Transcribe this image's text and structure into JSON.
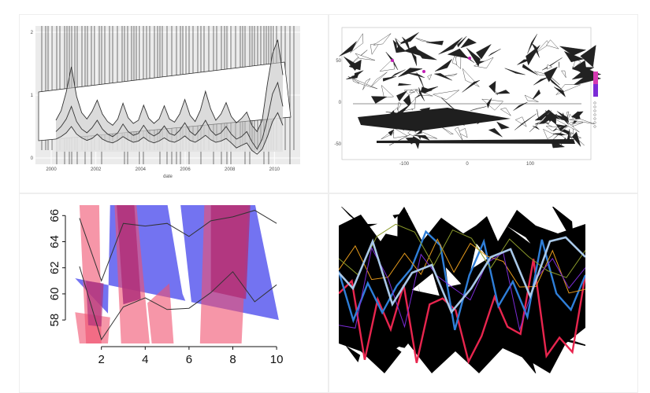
{
  "panels": [
    "glitched-time-series",
    "glitched-world-map",
    "glitched-overlap-plot",
    "glitched-abstract-lines"
  ],
  "chart_data": [
    {
      "id": "time-series",
      "type": "line",
      "xlabel": "date",
      "x_ticks": [
        "2000",
        "2002",
        "2004",
        "2006",
        "2008",
        "2010"
      ],
      "y_ticks": [
        "0",
        "1",
        "2"
      ],
      "ylim": [
        0,
        2
      ],
      "grid": true,
      "series": [
        {
          "values": [
            0.6,
            0.75,
            1.05,
            1.45,
            0.98,
            0.72,
            0.62,
            0.74,
            0.92,
            0.7,
            0.58,
            0.52,
            0.62,
            0.87,
            0.64,
            0.55,
            0.6,
            0.84,
            0.63,
            0.55,
            0.62,
            0.83,
            0.62,
            0.57,
            0.7,
            0.93,
            0.68,
            0.58,
            0.76,
            1.06,
            0.78,
            0.6,
            0.7,
            0.88,
            0.66,
            0.56,
            0.63,
            0.73,
            0.52,
            0.42,
            0.6,
            1.18,
            1.66,
            1.88,
            1.32
          ]
        },
        {
          "values": [
            0.42,
            0.5,
            0.62,
            0.82,
            0.58,
            0.46,
            0.4,
            0.48,
            0.6,
            0.46,
            0.38,
            0.34,
            0.4,
            0.54,
            0.42,
            0.36,
            0.39,
            0.52,
            0.4,
            0.35,
            0.4,
            0.51,
            0.39,
            0.36,
            0.44,
            0.56,
            0.42,
            0.36,
            0.46,
            0.6,
            0.44,
            0.36,
            0.4,
            0.5,
            0.38,
            0.3,
            0.34,
            0.42,
            0.26,
            0.14,
            0.3,
            0.62,
            1.02,
            1.2,
            0.82
          ]
        },
        {
          "values": [
            0.3,
            0.34,
            0.4,
            0.5,
            0.38,
            0.32,
            0.28,
            0.31,
            0.38,
            0.3,
            0.26,
            0.24,
            0.28,
            0.34,
            0.29,
            0.25,
            0.27,
            0.33,
            0.27,
            0.24,
            0.27,
            0.32,
            0.27,
            0.25,
            0.29,
            0.35,
            0.28,
            0.25,
            0.3,
            0.36,
            0.29,
            0.25,
            0.27,
            0.31,
            0.24,
            0.16,
            0.2,
            0.24,
            0.12,
            0.06,
            0.14,
            0.34,
            0.58,
            0.72,
            0.52
          ]
        }
      ]
    },
    {
      "id": "world-map",
      "type": "other",
      "x_ticks": [
        "-100",
        "0",
        "100"
      ],
      "y_ticks": [
        "50",
        "0",
        "-50"
      ],
      "legend": [
        "",
        "",
        "",
        "",
        "",
        "",
        ""
      ]
    },
    {
      "id": "overlap-plot",
      "type": "line",
      "x": [
        1,
        2,
        3,
        4,
        5,
        6,
        7,
        8,
        9,
        10
      ],
      "x_ticks": [
        "2",
        "4",
        "6",
        "8",
        "10"
      ],
      "y_ticks": [
        "58",
        "60",
        "62",
        "64",
        "66"
      ],
      "xlim": [
        0.5,
        10.5
      ],
      "ylim": [
        56.2,
        66.8
      ],
      "series": [
        {
          "values": [
            65.8,
            61.0,
            65.4,
            65.2,
            65.4,
            64.4,
            65.6,
            65.9,
            66.4,
            65.4
          ]
        },
        {
          "values": [
            62.1,
            56.5,
            59.0,
            59.7,
            58.8,
            58.9,
            60.1,
            61.7,
            59.4,
            60.7
          ]
        }
      ],
      "colors": {
        "red": "#f0506e",
        "blue": "#5a5aee",
        "purple": "#b0307a",
        "line": "#333333"
      }
    },
    {
      "id": "abstract-lines",
      "type": "line",
      "colors": {
        "bg": "#000000",
        "red": "#e8254e",
        "blue": "#2f7fd9",
        "light": "#a9c8e8",
        "orange": "#e59a1c",
        "olive": "#8b9a2a"
      }
    }
  ]
}
